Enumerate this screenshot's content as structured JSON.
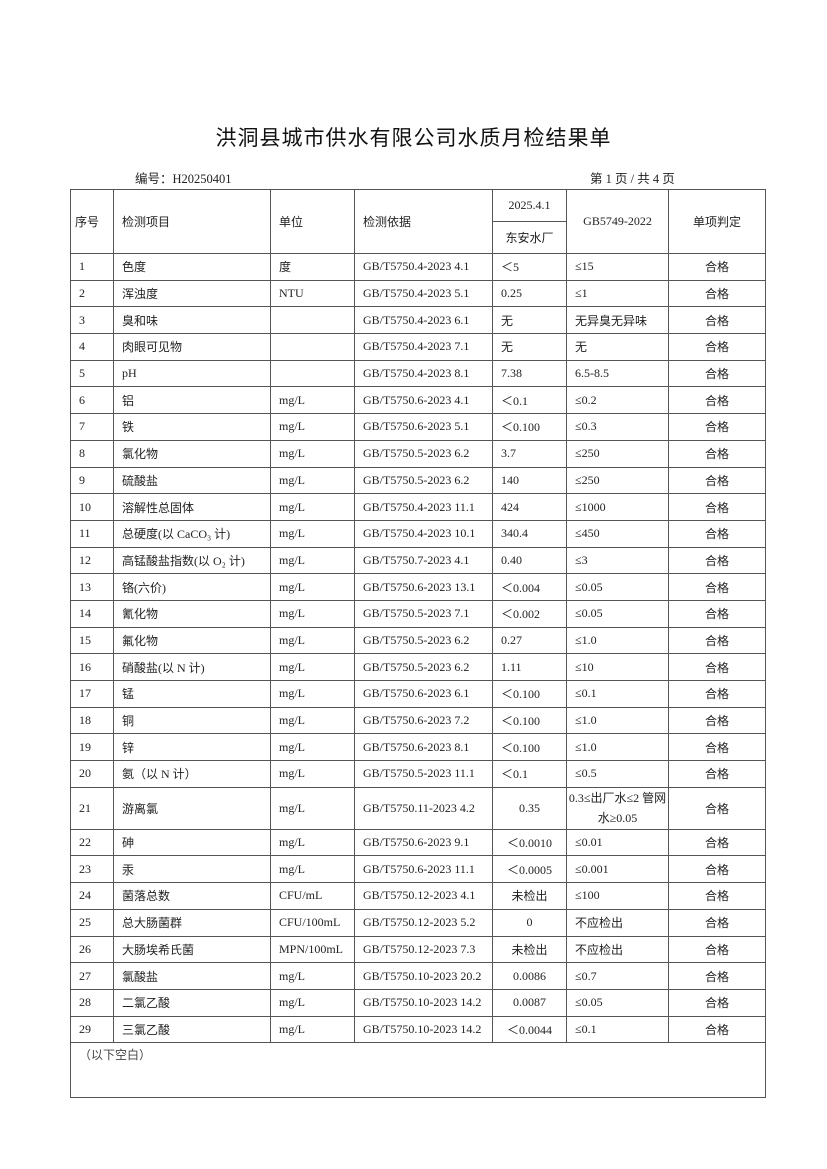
{
  "title": "洪洞县城市供水有限公司水质月检结果单",
  "doc_no": "编号：H20250401",
  "page_no": "第 1 页 / 共 4 页",
  "headers": {
    "no": "序号",
    "item": "检测项目",
    "unit": "单位",
    "method": "检测依据",
    "date": "2025.4.1",
    "site": "东安水厂",
    "standard": "GB5749-2022",
    "judge": "单项判定"
  },
  "rows": [
    [
      "1",
      "色度",
      "度",
      "GB/T5750.4-2023 4.1",
      "＜5",
      "≤15",
      "合格"
    ],
    [
      "2",
      "浑浊度",
      "NTU",
      "GB/T5750.4-2023 5.1",
      "0.25",
      "≤1",
      "合格"
    ],
    [
      "3",
      "臭和味",
      "",
      "GB/T5750.4-2023 6.1",
      "无",
      "无异臭无异味",
      "合格"
    ],
    [
      "4",
      "肉眼可见物",
      "",
      "GB/T5750.4-2023 7.1",
      "无",
      "无",
      "合格"
    ],
    [
      "5",
      "pH",
      "",
      "GB/T5750.4-2023 8.1",
      "7.38",
      "6.5-8.5",
      "合格"
    ],
    [
      "6",
      "铝",
      "mg/L",
      "GB/T5750.6-2023 4.1",
      "＜0.1",
      "≤0.2",
      "合格"
    ],
    [
      "7",
      "铁",
      "mg/L",
      "GB/T5750.6-2023 5.1",
      "＜0.100",
      "≤0.3",
      "合格"
    ],
    [
      "8",
      "氯化物",
      "mg/L",
      "GB/T5750.5-2023 6.2",
      "3.7",
      "≤250",
      "合格"
    ],
    [
      "9",
      "硫酸盐",
      "mg/L",
      "GB/T5750.5-2023 6.2",
      "140",
      "≤250",
      "合格"
    ],
    [
      "10",
      "溶解性总固体",
      "mg/L",
      "GB/T5750.4-2023 11.1",
      "424",
      "≤1000",
      "合格"
    ],
    [
      "11",
      "总硬度(以 CaCO₃ 计)",
      "mg/L",
      "GB/T5750.4-2023 10.1",
      "340.4",
      "≤450",
      "合格"
    ],
    [
      "12",
      "高锰酸盐指数(以 O₂ 计)",
      "mg/L",
      "GB/T5750.7-2023 4.1",
      "0.40",
      "≤3",
      "合格"
    ],
    [
      "13",
      "铬(六价)",
      "mg/L",
      "GB/T5750.6-2023 13.1",
      "＜0.004",
      "≤0.05",
      "合格"
    ],
    [
      "14",
      "氰化物",
      "mg/L",
      "GB/T5750.5-2023 7.1",
      "＜0.002",
      "≤0.05",
      "合格"
    ],
    [
      "15",
      "氟化物",
      "mg/L",
      "GB/T5750.5-2023 6.2",
      "0.27",
      "≤1.0",
      "合格"
    ],
    [
      "16",
      "硝酸盐(以 N 计)",
      "mg/L",
      "GB/T5750.5-2023 6.2",
      "1.11",
      "≤10",
      "合格"
    ],
    [
      "17",
      "锰",
      "mg/L",
      "GB/T5750.6-2023 6.1",
      "＜0.100",
      "≤0.1",
      "合格"
    ],
    [
      "18",
      "铜",
      "mg/L",
      "GB/T5750.6-2023 7.2",
      "＜0.100",
      "≤1.0",
      "合格"
    ],
    [
      "19",
      "锌",
      "mg/L",
      "GB/T5750.6-2023 8.1",
      "＜0.100",
      "≤1.0",
      "合格"
    ],
    [
      "20",
      "氨（以 N 计）",
      "mg/L",
      "GB/T5750.5-2023 11.1",
      "＜0.1",
      "≤0.5",
      "合格"
    ],
    [
      "21",
      "游离氯",
      "mg/L",
      "GB/T5750.11-2023 4.2",
      "0.35",
      "0.3≤出厂水≤2 管网水≥0.05",
      "合格"
    ],
    [
      "22",
      "砷",
      "mg/L",
      "GB/T5750.6-2023 9.1",
      "＜0.0010",
      "≤0.01",
      "合格"
    ],
    [
      "23",
      "汞",
      "mg/L",
      "GB/T5750.6-2023 11.1",
      "＜0.0005",
      "≤0.001",
      "合格"
    ],
    [
      "24",
      "菌落总数",
      "CFU/mL",
      "GB/T5750.12-2023 4.1",
      "未检出",
      "≤100",
      "合格"
    ],
    [
      "25",
      "总大肠菌群",
      "CFU/100mL",
      "GB/T5750.12-2023 5.2",
      "0",
      "不应检出",
      "合格"
    ],
    [
      "26",
      "大肠埃希氏菌",
      "MPN/100mL",
      "GB/T5750.12-2023 7.3",
      "未检出",
      "不应检出",
      "合格"
    ],
    [
      "27",
      "氯酸盐",
      "mg/L",
      "GB/T5750.10-2023 20.2",
      "0.0086",
      "≤0.7",
      "合格"
    ],
    [
      "28",
      "二氯乙酸",
      "mg/L",
      "GB/T5750.10-2023 14.2",
      "0.0087",
      "≤0.05",
      "合格"
    ],
    [
      "29",
      "三氯乙酸",
      "mg/L",
      "GB/T5750.10-2023 14.2",
      "＜0.0044",
      "≤0.1",
      "合格"
    ]
  ],
  "footer_note": "（以下空白）"
}
